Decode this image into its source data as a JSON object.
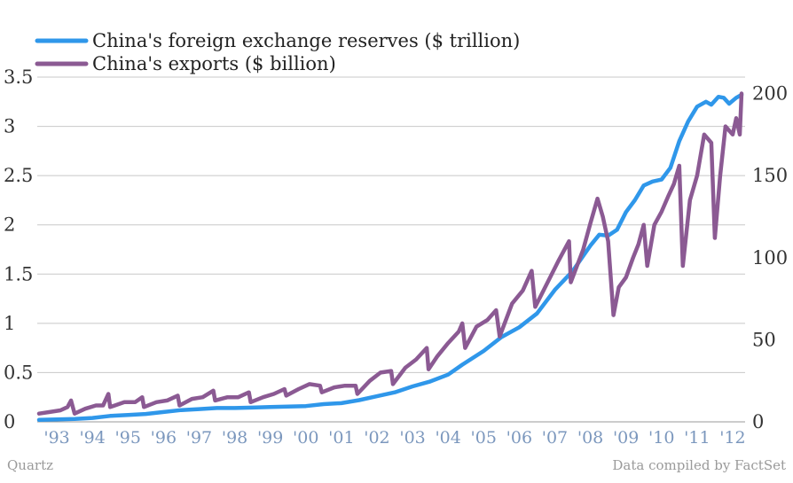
{
  "source": {
    "left": "Quartz",
    "right": "Data compiled by FactSet"
  },
  "chart_data": {
    "type": "line",
    "title": "",
    "grid": true,
    "legend_placement": "top-left",
    "x_range": [
      1993.0,
      2012.75
    ],
    "x_tick_labels": [
      {
        "year": 1993,
        "label": "'93"
      },
      {
        "year": 1994,
        "label": "'94"
      },
      {
        "year": 1995,
        "label": "'95"
      },
      {
        "year": 1996,
        "label": "'96"
      },
      {
        "year": 1997,
        "label": "'97"
      },
      {
        "year": 1998,
        "label": "'98"
      },
      {
        "year": 1999,
        "label": "'99"
      },
      {
        "year": 2000,
        "label": "'00"
      },
      {
        "year": 2001,
        "label": "'01"
      },
      {
        "year": 2002,
        "label": "'02"
      },
      {
        "year": 2003,
        "label": "'03"
      },
      {
        "year": 2004,
        "label": "'04"
      },
      {
        "year": 2005,
        "label": "'05"
      },
      {
        "year": 2006,
        "label": "'06"
      },
      {
        "year": 2007,
        "label": "'07"
      },
      {
        "year": 2008,
        "label": "'08"
      },
      {
        "year": 2009,
        "label": "'09"
      },
      {
        "year": 2010,
        "label": "'10"
      },
      {
        "year": 2011,
        "label": "'11"
      },
      {
        "year": 2012,
        "label": "'12"
      }
    ],
    "y_left": {
      "range": [
        0,
        3.5
      ],
      "ticks": [
        0,
        0.5,
        1,
        1.5,
        2,
        2.5,
        3,
        3.5
      ],
      "tick_labels": [
        "0",
        "0.5",
        "1",
        "1.5",
        "2",
        "2.5",
        "3",
        "3.5"
      ]
    },
    "y_right": {
      "range": [
        0,
        210
      ],
      "ticks": [
        0,
        50,
        100,
        150,
        200
      ],
      "tick_labels": [
        "0",
        "50",
        "100",
        "150",
        "200"
      ]
    },
    "series": [
      {
        "name": "China's foreign exchange reserves ($ trillion)",
        "axis": "left",
        "color": "#2f97ea",
        "points": [
          [
            1993.0,
            0.02
          ],
          [
            1994.0,
            0.03
          ],
          [
            1994.5,
            0.04
          ],
          [
            1995.0,
            0.06
          ],
          [
            1995.5,
            0.07
          ],
          [
            1996.0,
            0.08
          ],
          [
            1996.5,
            0.1
          ],
          [
            1997.0,
            0.12
          ],
          [
            1997.5,
            0.13
          ],
          [
            1998.0,
            0.14
          ],
          [
            1998.5,
            0.14
          ],
          [
            1999.0,
            0.145
          ],
          [
            1999.5,
            0.15
          ],
          [
            2000.0,
            0.155
          ],
          [
            2000.5,
            0.16
          ],
          [
            2001.0,
            0.18
          ],
          [
            2001.5,
            0.19
          ],
          [
            2002.0,
            0.22
          ],
          [
            2002.5,
            0.26
          ],
          [
            2003.0,
            0.3
          ],
          [
            2003.5,
            0.36
          ],
          [
            2004.0,
            0.41
          ],
          [
            2004.5,
            0.48
          ],
          [
            2004.9,
            0.58
          ],
          [
            2005.5,
            0.72
          ],
          [
            2006.0,
            0.86
          ],
          [
            2006.5,
            0.96
          ],
          [
            2007.0,
            1.1
          ],
          [
            2007.5,
            1.34
          ],
          [
            2008.0,
            1.53
          ],
          [
            2008.5,
            1.79
          ],
          [
            2008.75,
            1.9
          ],
          [
            2009.0,
            1.89
          ],
          [
            2009.25,
            1.95
          ],
          [
            2009.5,
            2.13
          ],
          [
            2009.75,
            2.25
          ],
          [
            2010.0,
            2.4
          ],
          [
            2010.25,
            2.44
          ],
          [
            2010.5,
            2.46
          ],
          [
            2010.75,
            2.58
          ],
          [
            2011.0,
            2.85
          ],
          [
            2011.25,
            3.05
          ],
          [
            2011.5,
            3.2
          ],
          [
            2011.75,
            3.25
          ],
          [
            2011.9,
            3.22
          ],
          [
            2012.1,
            3.3
          ],
          [
            2012.25,
            3.29
          ],
          [
            2012.4,
            3.23
          ],
          [
            2012.6,
            3.29
          ],
          [
            2012.75,
            3.32
          ]
        ]
      },
      {
        "name": "China's exports ($ billion)",
        "axis": "right",
        "color": "#8b5a93",
        "points": [
          [
            1993.0,
            5
          ],
          [
            1993.3,
            6
          ],
          [
            1993.6,
            7
          ],
          [
            1993.8,
            9
          ],
          [
            1993.9,
            13
          ],
          [
            1994.0,
            5
          ],
          [
            1994.3,
            8
          ],
          [
            1994.6,
            10
          ],
          [
            1994.8,
            10
          ],
          [
            1994.95,
            17
          ],
          [
            1995.0,
            9
          ],
          [
            1995.4,
            12
          ],
          [
            1995.7,
            12
          ],
          [
            1995.9,
            15
          ],
          [
            1995.95,
            9
          ],
          [
            1996.3,
            12
          ],
          [
            1996.6,
            13
          ],
          [
            1996.9,
            16
          ],
          [
            1996.95,
            10
          ],
          [
            1997.3,
            14
          ],
          [
            1997.6,
            15
          ],
          [
            1997.9,
            19
          ],
          [
            1997.95,
            13
          ],
          [
            1998.3,
            15
          ],
          [
            1998.6,
            15
          ],
          [
            1998.9,
            18
          ],
          [
            1998.95,
            12
          ],
          [
            1999.3,
            15
          ],
          [
            1999.6,
            17
          ],
          [
            1999.9,
            20
          ],
          [
            1999.95,
            16
          ],
          [
            2000.3,
            20
          ],
          [
            2000.6,
            23
          ],
          [
            2000.9,
            22
          ],
          [
            2000.95,
            18
          ],
          [
            2001.3,
            21
          ],
          [
            2001.6,
            22
          ],
          [
            2001.9,
            22
          ],
          [
            2001.95,
            17
          ],
          [
            2002.3,
            25
          ],
          [
            2002.6,
            30
          ],
          [
            2002.9,
            31
          ],
          [
            2002.95,
            23
          ],
          [
            2003.3,
            33
          ],
          [
            2003.6,
            38
          ],
          [
            2003.9,
            45
          ],
          [
            2003.95,
            32
          ],
          [
            2004.2,
            40
          ],
          [
            2004.5,
            48
          ],
          [
            2004.8,
            55
          ],
          [
            2004.9,
            60
          ],
          [
            2004.98,
            45
          ],
          [
            2005.3,
            58
          ],
          [
            2005.6,
            62
          ],
          [
            2005.85,
            68
          ],
          [
            2005.95,
            52
          ],
          [
            2006.3,
            72
          ],
          [
            2006.6,
            80
          ],
          [
            2006.85,
            92
          ],
          [
            2006.95,
            70
          ],
          [
            2007.3,
            85
          ],
          [
            2007.6,
            98
          ],
          [
            2007.9,
            110
          ],
          [
            2007.95,
            85
          ],
          [
            2008.3,
            105
          ],
          [
            2008.5,
            121
          ],
          [
            2008.7,
            136
          ],
          [
            2008.85,
            125
          ],
          [
            2009.0,
            110
          ],
          [
            2009.15,
            65
          ],
          [
            2009.3,
            82
          ],
          [
            2009.5,
            88
          ],
          [
            2009.7,
            100
          ],
          [
            2009.85,
            108
          ],
          [
            2010.0,
            120
          ],
          [
            2010.1,
            95
          ],
          [
            2010.3,
            120
          ],
          [
            2010.5,
            128
          ],
          [
            2010.7,
            138
          ],
          [
            2010.85,
            145
          ],
          [
            2011.0,
            156
          ],
          [
            2011.1,
            95
          ],
          [
            2011.3,
            135
          ],
          [
            2011.5,
            150
          ],
          [
            2011.7,
            175
          ],
          [
            2011.9,
            170
          ],
          [
            2012.0,
            112
          ],
          [
            2012.15,
            150
          ],
          [
            2012.3,
            180
          ],
          [
            2012.5,
            175
          ],
          [
            2012.6,
            185
          ],
          [
            2012.7,
            175
          ],
          [
            2012.75,
            200
          ]
        ]
      }
    ]
  }
}
